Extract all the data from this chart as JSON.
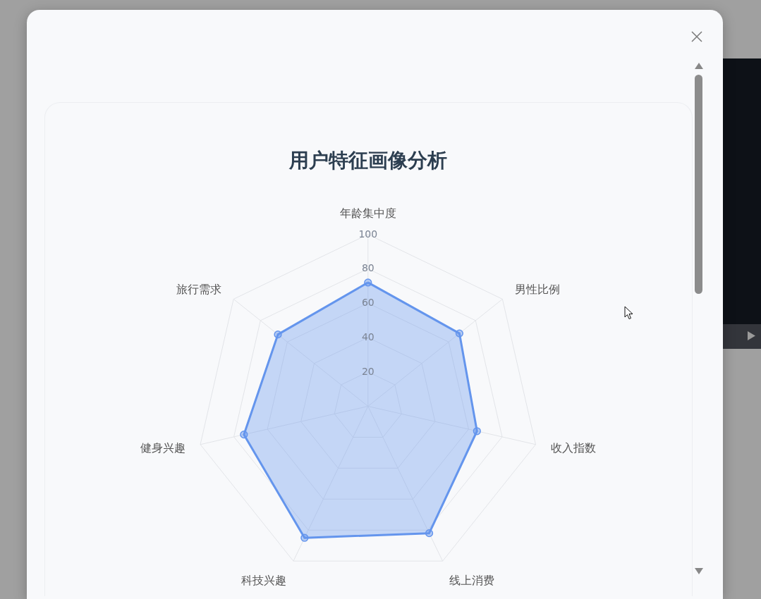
{
  "chart_data": {
    "type": "radar",
    "title": "用户特征画像分析",
    "categories": [
      "年龄集中度",
      "男性比例",
      "收入指数",
      "线上消费",
      "科技兴趣",
      "健身兴趣",
      "旅行需求"
    ],
    "series": [
      {
        "color": "#6495ed",
        "values": [
          72,
          68,
          65,
          82,
          85,
          74,
          67
        ]
      }
    ],
    "ylim": [
      0,
      100
    ],
    "yticks": [
      20,
      40,
      60,
      80,
      100
    ],
    "grid": true,
    "marker": "circle"
  }
}
